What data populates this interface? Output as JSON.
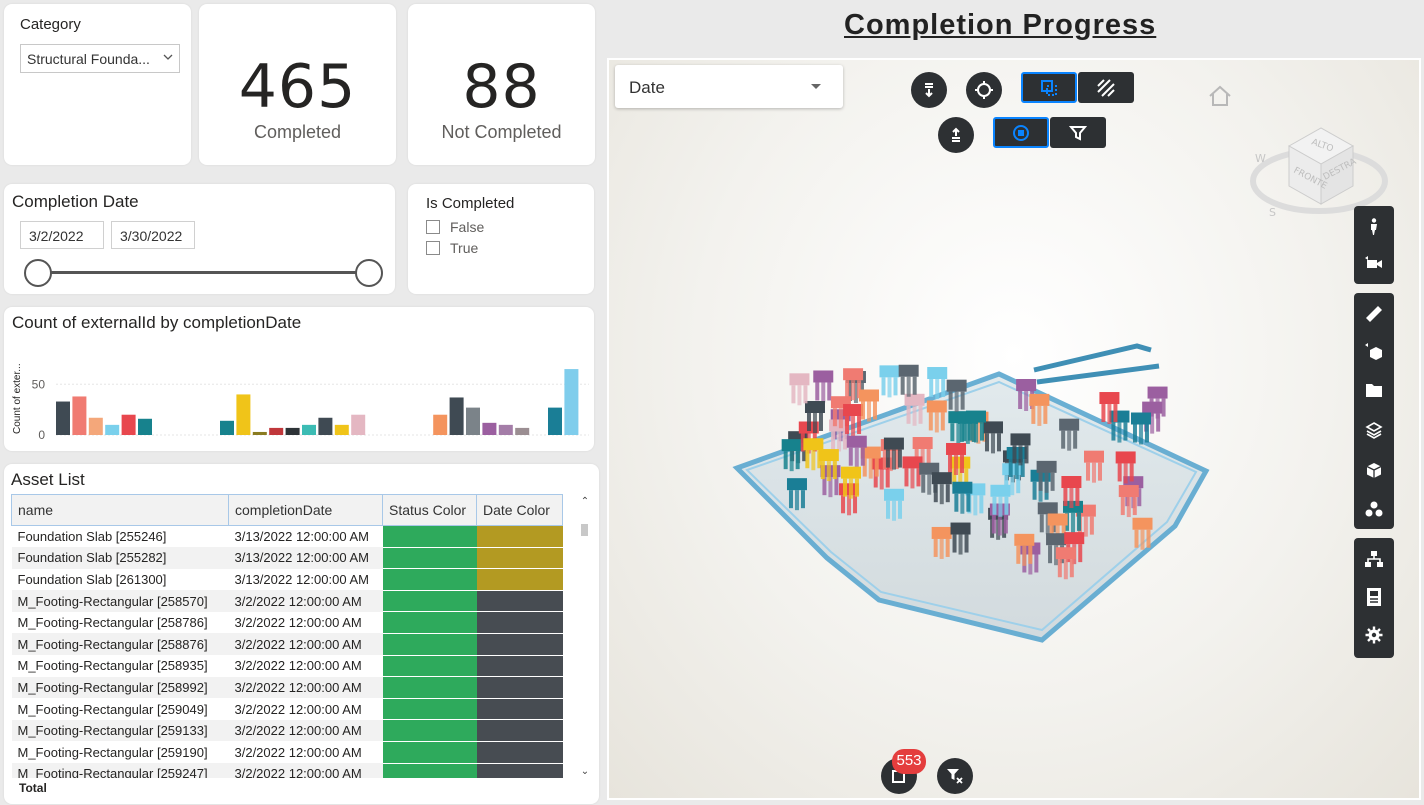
{
  "category": {
    "title": "Category",
    "selected": "Structural Founda..."
  },
  "kpis": [
    {
      "value": "465",
      "label": "Completed"
    },
    {
      "value": "88",
      "label": "Not Completed"
    }
  ],
  "completion_date": {
    "title": "Completion Date",
    "start": "3/2/2022",
    "end": "3/30/2022"
  },
  "is_completed": {
    "title": "Is Completed",
    "options": [
      "False",
      "True"
    ]
  },
  "chart_data": {
    "type": "bar",
    "title": "Count of externalId by completionDate",
    "ylabel": "Count of exter...",
    "xlabel": "",
    "ylim": [
      0,
      70
    ],
    "yticks": [
      0,
      50
    ],
    "values": [
      33,
      38,
      17,
      10,
      20,
      16,
      0,
      0,
      0,
      0,
      14,
      40,
      3,
      7,
      7,
      10,
      17,
      10,
      20,
      0,
      0,
      0,
      0,
      20,
      37,
      27,
      12,
      10,
      7,
      0,
      27,
      65
    ],
    "colors": [
      "#3f4a53",
      "#f07b72",
      "#f4a77a",
      "#7ad0ec",
      "#e8474e",
      "#17828d",
      "#ffffff",
      "#ffffff",
      "#ffffff",
      "#ffffff",
      "#17828d",
      "#f0c419",
      "#8a7b20",
      "#c0373b",
      "#2d3337",
      "#3cbcb4",
      "#3f4a53",
      "#f0c419",
      "#e4b7c2",
      "#ffffff",
      "#ffffff",
      "#ffffff",
      "#ffffff",
      "#f4945e",
      "#3f4a53",
      "#7b8389",
      "#9b5fa0",
      "#a47da8",
      "#9b8e92",
      "#ffffff",
      "#1a7e96",
      "#7fcdec"
    ]
  },
  "asset_list": {
    "title": "Asset List",
    "columns": [
      "name",
      "completionDate",
      "Status Color",
      "Date Color"
    ],
    "rows": [
      {
        "name": "Foundation Slab [255246]",
        "date": "3/13/2022 12:00:00 AM",
        "date_color": "gold"
      },
      {
        "name": "Foundation Slab [255282]",
        "date": "3/13/2022 12:00:00 AM",
        "date_color": "gold"
      },
      {
        "name": "Foundation Slab [261300]",
        "date": "3/13/2022 12:00:00 AM",
        "date_color": "gold"
      },
      {
        "name": "M_Footing-Rectangular [258570]",
        "date": "3/2/2022 12:00:00 AM",
        "date_color": "dark"
      },
      {
        "name": "M_Footing-Rectangular [258786]",
        "date": "3/2/2022 12:00:00 AM",
        "date_color": "dark"
      },
      {
        "name": "M_Footing-Rectangular [258876]",
        "date": "3/2/2022 12:00:00 AM",
        "date_color": "dark"
      },
      {
        "name": "M_Footing-Rectangular [258935]",
        "date": "3/2/2022 12:00:00 AM",
        "date_color": "dark"
      },
      {
        "name": "M_Footing-Rectangular [258992]",
        "date": "3/2/2022 12:00:00 AM",
        "date_color": "dark"
      },
      {
        "name": "M_Footing-Rectangular [259049]",
        "date": "3/2/2022 12:00:00 AM",
        "date_color": "dark"
      },
      {
        "name": "M_Footing-Rectangular [259133]",
        "date": "3/2/2022 12:00:00 AM",
        "date_color": "dark"
      },
      {
        "name": "M_Footing-Rectangular [259190]",
        "date": "3/2/2022 12:00:00 AM",
        "date_color": "dark"
      },
      {
        "name": "M_Footing-Rectangular [259247]",
        "date": "3/2/2022 12:00:00 AM",
        "date_color": "dark"
      }
    ],
    "total_label": "Total"
  },
  "page_title": "Completion Progress",
  "viewer": {
    "dropdown_value": "Date",
    "selection_count": "553",
    "nav_cube_labels": [
      "ALTO",
      "FRONTE",
      "DESTRA",
      "S",
      "W"
    ]
  },
  "colors": {
    "status_green": "#2eaa5c",
    "date_gold": "#b39a22",
    "date_dark": "#474c52",
    "accent": "#0a84ff",
    "badge": "#e43d3d"
  }
}
